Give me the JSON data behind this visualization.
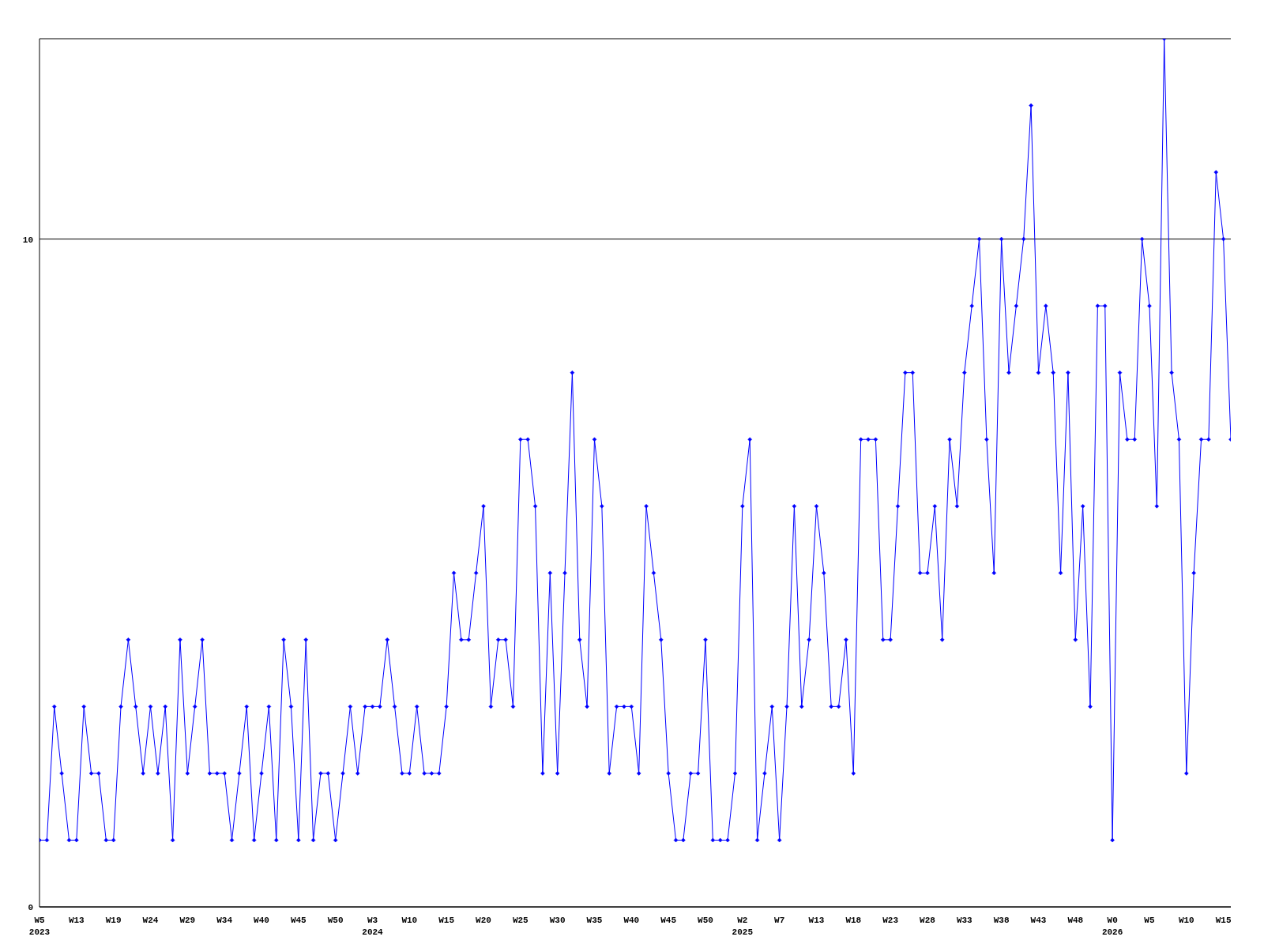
{
  "chart_data": {
    "type": "line",
    "categories": [
      "W5\n2023",
      null,
      null,
      null,
      null,
      "W13",
      null,
      null,
      null,
      null,
      "W19",
      null,
      null,
      null,
      null,
      "W24",
      null,
      null,
      null,
      null,
      "W29",
      null,
      null,
      null,
      null,
      "W34",
      null,
      null,
      null,
      null,
      "W40",
      null,
      null,
      null,
      null,
      "W45",
      null,
      null,
      null,
      null,
      "W50",
      null,
      null,
      null,
      null,
      "W3\n2024",
      null,
      null,
      null,
      null,
      "W10",
      null,
      null,
      null,
      null,
      "W15",
      null,
      null,
      null,
      null,
      "W20",
      null,
      null,
      null,
      null,
      "W25",
      null,
      null,
      null,
      null,
      "W30",
      null,
      null,
      null,
      null,
      "W35",
      null,
      null,
      null,
      null,
      "W40",
      null,
      null,
      null,
      null,
      "W45",
      null,
      null,
      null,
      null,
      "W50",
      null,
      null,
      null,
      null,
      "W2\n2025",
      null,
      null,
      null,
      null,
      "W7",
      null,
      null,
      null,
      null,
      "W13",
      null,
      null,
      null,
      null,
      "W18",
      null,
      null,
      null,
      null,
      "W23",
      null,
      null,
      null,
      null,
      "W28",
      null,
      null,
      null,
      null,
      "W33",
      null,
      null,
      null,
      null,
      "W38",
      null,
      null,
      null,
      null,
      "W43",
      null,
      null,
      null,
      null,
      "W48",
      null,
      null,
      null,
      null,
      "W0\n2026",
      null,
      null,
      null,
      null,
      "W5",
      null,
      null,
      null,
      null,
      "W10",
      null,
      null,
      null,
      null,
      "W15",
      null
    ],
    "series": [
      {
        "color": "#0000ff",
        "values": [
          1,
          1,
          3,
          2,
          1,
          1,
          3,
          2,
          2,
          1,
          1,
          3,
          4,
          3,
          2,
          3,
          2,
          3,
          1,
          4,
          2,
          3,
          4,
          2,
          2,
          2,
          1,
          2,
          3,
          1,
          2,
          3,
          1,
          4,
          3,
          1,
          4,
          1,
          2,
          2,
          1,
          2,
          3,
          2,
          3,
          3,
          3,
          4,
          3,
          2,
          2,
          3,
          2,
          2,
          2,
          3,
          5,
          4,
          4,
          5,
          6,
          3,
          4,
          4,
          3,
          7,
          7,
          6,
          2,
          5,
          2,
          5,
          8,
          4,
          3,
          7,
          6,
          2,
          3,
          3,
          3,
          2,
          6,
          5,
          4,
          2,
          1,
          1,
          2,
          2,
          4,
          1,
          1,
          1,
          2,
          6,
          7,
          1,
          2,
          3,
          1,
          3,
          6,
          3,
          4,
          6,
          5,
          3,
          3,
          4,
          2,
          7,
          7,
          7,
          4,
          4,
          6,
          8,
          8,
          5,
          5,
          6,
          4,
          7,
          6,
          8,
          9,
          10,
          7,
          5,
          10,
          8,
          9,
          10,
          12,
          8,
          9,
          8,
          5,
          8,
          4,
          6,
          3,
          9,
          9,
          1,
          8,
          7,
          7,
          10,
          9,
          6,
          13,
          8,
          7,
          2,
          5,
          7,
          7,
          11,
          10,
          7
        ]
      }
    ],
    "ylim": [
      0,
      13
    ],
    "yticks": [
      0,
      10
    ],
    "grid": "y",
    "marker": "diamond",
    "line_style": "solid",
    "legend": false
  }
}
